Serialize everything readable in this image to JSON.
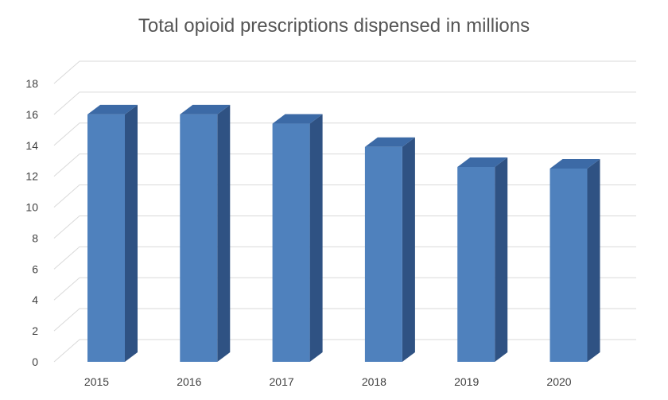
{
  "chart_data": {
    "type": "bar",
    "title": "Total opioid prescriptions dispensed in millions",
    "categories": [
      "2015",
      "2016",
      "2017",
      "2018",
      "2019",
      "2020"
    ],
    "values": [
      16.0,
      16.0,
      15.4,
      13.9,
      12.6,
      12.5
    ],
    "ylim": [
      0,
      18
    ],
    "yticks": [
      "0",
      "2",
      "4",
      "6",
      "8",
      "10",
      "12",
      "14",
      "16",
      "18"
    ],
    "xlabel": "",
    "ylabel": "",
    "grid": true,
    "legend": "none",
    "colors": {
      "bar_front": "#4f81bd",
      "bar_side": "#2f5283",
      "bar_top": "#3c6aa6",
      "gridline": "#d9d9d9",
      "text": "#404040",
      "title": "#555555"
    }
  }
}
